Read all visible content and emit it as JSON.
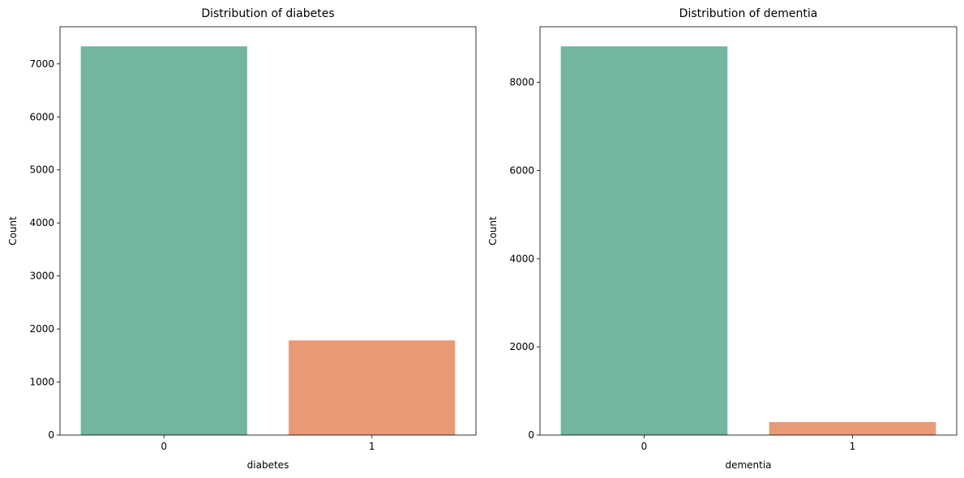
{
  "chart_data": [
    {
      "type": "bar",
      "title": "Distribution of diabetes",
      "xlabel": "diabetes",
      "ylabel": "Count",
      "categories": [
        "0",
        "1"
      ],
      "values": [
        7330,
        1785
      ],
      "colors": [
        "#73b59f",
        "#e89975"
      ],
      "ylim": [
        0,
        7700
      ],
      "yticks": [
        0,
        1000,
        2000,
        3000,
        4000,
        5000,
        6000,
        7000
      ],
      "grid": false,
      "legend": "none"
    },
    {
      "type": "bar",
      "title": "Distribution of dementia",
      "xlabel": "dementia",
      "ylabel": "Count",
      "categories": [
        "0",
        "1"
      ],
      "values": [
        8815,
        295
      ],
      "colors": [
        "#73b59f",
        "#e89975"
      ],
      "ylim": [
        0,
        9260
      ],
      "yticks": [
        0,
        2000,
        4000,
        6000,
        8000
      ],
      "grid": false,
      "legend": "none"
    }
  ]
}
